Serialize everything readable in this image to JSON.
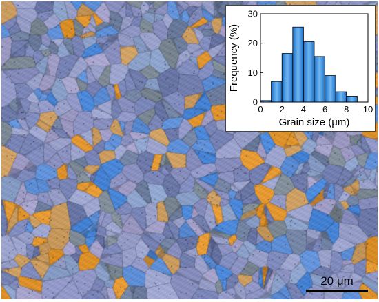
{
  "micrograph": {
    "colors": [
      "#8c93c2",
      "#7b86b8",
      "#9aa2cc",
      "#5e8fd6",
      "#4a87d8",
      "#6f7fa0",
      "#7d8a95",
      "#a19ec8",
      "#c99a5e",
      "#e0942e",
      "#8aa0c8",
      "#6b78a8"
    ]
  },
  "scale_bar": {
    "label": "20 μm"
  },
  "chart_data": {
    "type": "bar",
    "xlabel": "Grain size (μm)",
    "ylabel": "Frequency (%)",
    "xlim": [
      0,
      10
    ],
    "ylim": [
      0,
      30
    ],
    "x_ticks": [
      "0",
      "2",
      "4",
      "6",
      "8",
      "10"
    ],
    "y_ticks": [
      "0",
      "10",
      "20",
      "30"
    ],
    "bin_width": 1,
    "bin_starts": [
      0,
      1,
      2,
      3,
      4,
      5,
      6,
      7,
      8
    ],
    "values": [
      0.5,
      7,
      16.5,
      25.5,
      20.5,
      15.5,
      9,
      3.5,
      2
    ],
    "bar_color": "#3f8fd9"
  }
}
